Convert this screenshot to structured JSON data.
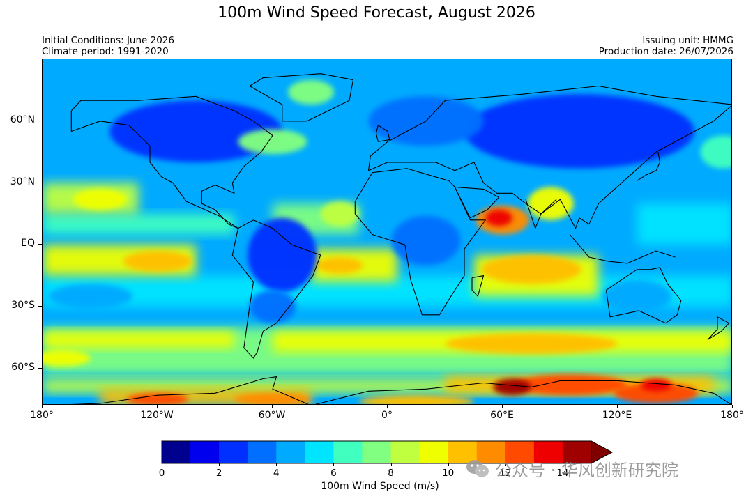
{
  "title": "100m Wind Speed Forecast, August 2026",
  "info_left": {
    "line1": "Initial Conditions: June 2026",
    "line2": "Climate period: 1991-2020"
  },
  "info_right": {
    "line1": "Issuing unit: HMMG",
    "line2": "Production date: 26/07/2026"
  },
  "map": {
    "projection": "equirectangular",
    "extent": {
      "lon": [
        -180,
        180
      ],
      "lat": [
        -78,
        90
      ]
    },
    "lat_labels": [
      {
        "lat": 60,
        "text": "60°N"
      },
      {
        "lat": 30,
        "text": "30°N"
      },
      {
        "lat": 0,
        "text": "EQ"
      },
      {
        "lat": -30,
        "text": "30°S"
      },
      {
        "lat": -60,
        "text": "60°S"
      }
    ],
    "lon_labels": [
      {
        "lon": -180,
        "text": "180°"
      },
      {
        "lon": -120,
        "text": "120°W"
      },
      {
        "lon": -60,
        "text": "60°W"
      },
      {
        "lon": 0,
        "text": "0°"
      },
      {
        "lon": 60,
        "text": "60°E"
      },
      {
        "lon": 120,
        "text": "120°E"
      },
      {
        "lon": 180,
        "text": "180°"
      }
    ],
    "wind_field_features": [
      {
        "region": "Arabian Sea jet",
        "lon": 58,
        "lat": 13,
        "speed": 13.5
      },
      {
        "region": "South Indian Ocean trades",
        "lon": 70,
        "lat": -12,
        "speed": 10.5
      },
      {
        "region": "East Pacific trades",
        "lon": -120,
        "lat": -8,
        "speed": 10.5
      },
      {
        "region": "South Atlantic trades",
        "lon": -20,
        "lat": -10,
        "speed": 10
      },
      {
        "region": "Southern Ocean westerlies (Indian)",
        "lon": 80,
        "lat": -48,
        "speed": 10.5
      },
      {
        "region": "East Antarctic plateau",
        "lon": 70,
        "lat": -70,
        "speed": 13.5
      },
      {
        "region": "Wilkes Land slope",
        "lon": 140,
        "lat": -70,
        "speed": 13
      },
      {
        "region": "West Antarctic coast",
        "lon": -120,
        "lat": -75,
        "speed": 12.5
      }
    ]
  },
  "colorbar": {
    "label": "100m Wind Speed (m/s)",
    "min": 0,
    "max": 15,
    "step": 1,
    "extend": "max",
    "tick_labels": [
      "0",
      "2",
      "4",
      "6",
      "8",
      "10",
      "12",
      "14"
    ],
    "colors": [
      "#00008f",
      "#0000ee",
      "#0030ff",
      "#006fff",
      "#00aaff",
      "#00e5ff",
      "#40ffbf",
      "#80ff80",
      "#bfff40",
      "#f0ff00",
      "#ffc000",
      "#ff8c00",
      "#ff4a00",
      "#ee0000",
      "#9f0000"
    ],
    "extend_color": "#800000"
  },
  "watermark": {
    "text": "公众号 · 华风创新研究院"
  }
}
